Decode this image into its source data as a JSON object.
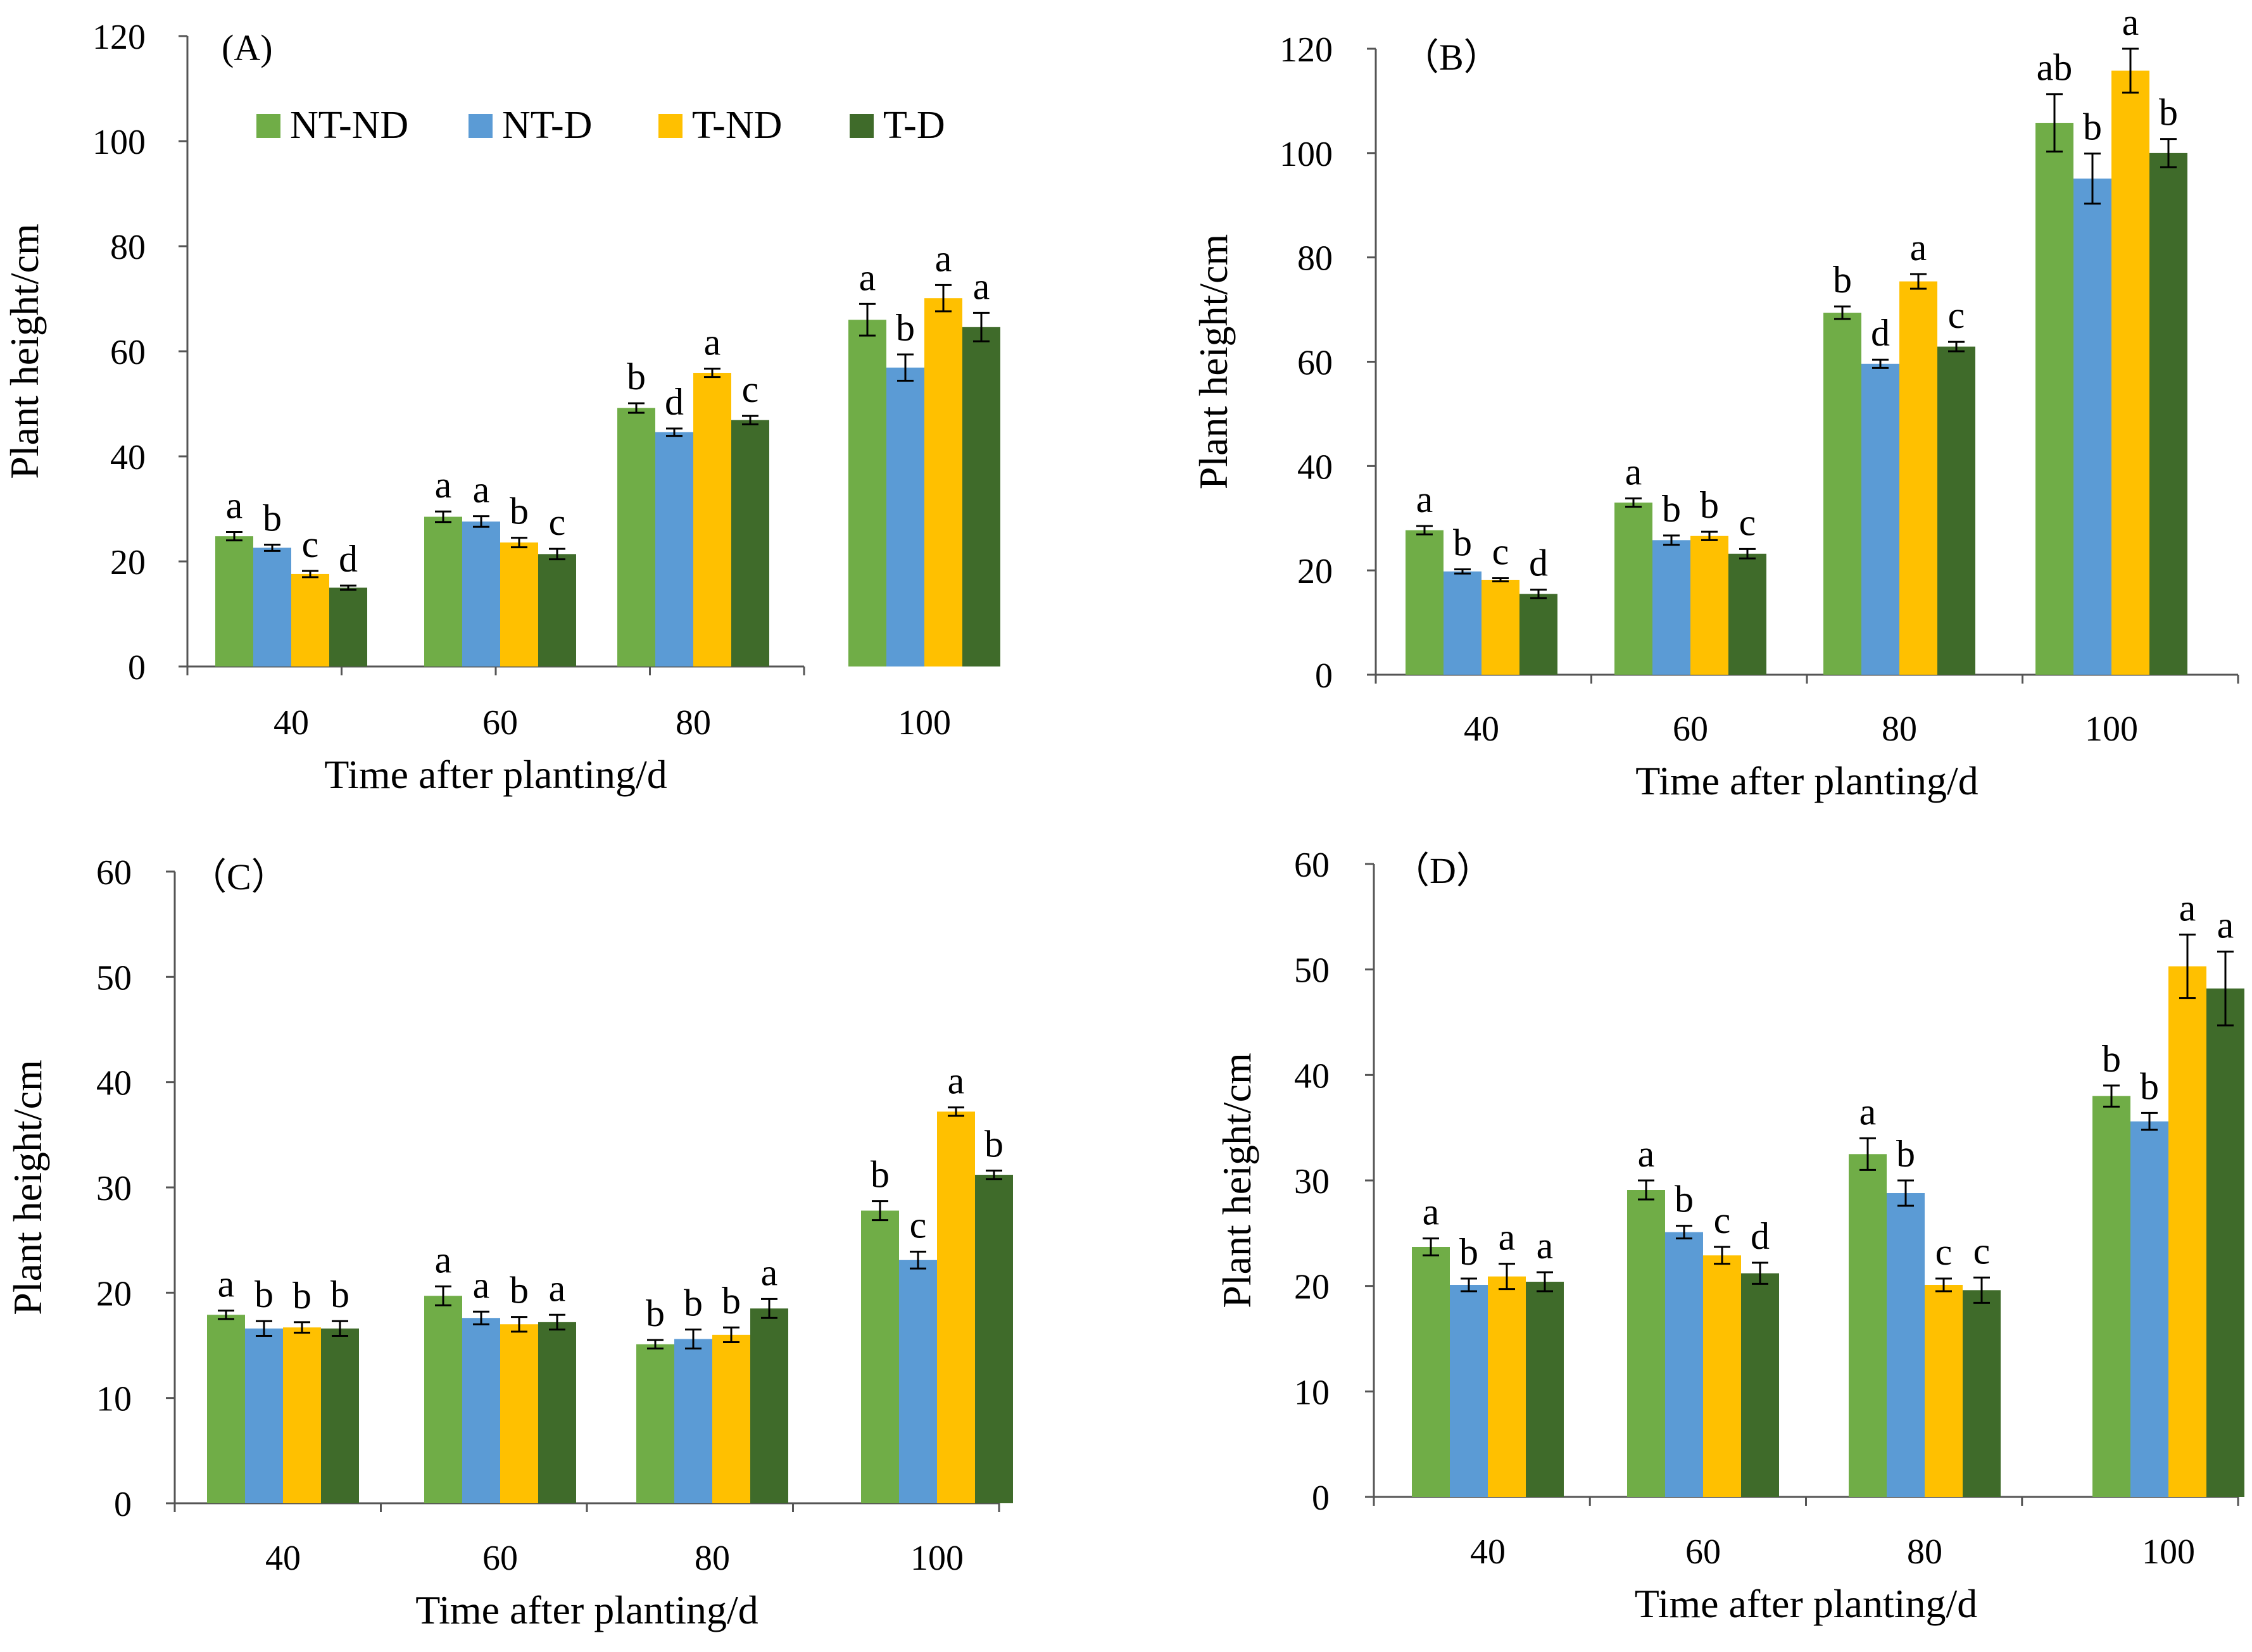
{
  "colors": {
    "NT-ND": "#70ad47",
    "NT-D": "#5b9bd5",
    "T-ND": "#ffc000",
    "T-D": "#3f6b2a",
    "axis": "#555555"
  },
  "chart_data": [
    {
      "type": "bar",
      "panel": "(A)",
      "xlabel": "Time after planting/d",
      "ylabel": "Plant height/cm",
      "ylim": [
        0,
        120
      ],
      "yticks": [
        0,
        20,
        40,
        60,
        80,
        100,
        120
      ],
      "categories": [
        "40",
        "60",
        "80",
        "100"
      ],
      "legend": [
        "NT-ND",
        "NT-D",
        "T-ND",
        "T-D"
      ],
      "series": [
        {
          "name": "NT-ND",
          "values": [
            24.8,
            28.5,
            49.2,
            66.0
          ],
          "errors": [
            0.8,
            1.0,
            0.9,
            3.0
          ],
          "letters": [
            "a",
            "a",
            "b",
            "a"
          ]
        },
        {
          "name": "NT-D",
          "values": [
            22.6,
            27.6,
            44.6,
            56.9
          ],
          "errors": [
            0.6,
            1.0,
            0.7,
            2.5
          ],
          "letters": [
            "b",
            "a",
            "d",
            "b"
          ]
        },
        {
          "name": "T-ND",
          "values": [
            17.6,
            23.6,
            55.9,
            70.1
          ],
          "errors": [
            0.6,
            0.9,
            0.8,
            2.5
          ],
          "letters": [
            "c",
            "b",
            "a",
            "a"
          ]
        },
        {
          "name": "T-D",
          "values": [
            15.0,
            21.4,
            46.9,
            64.6
          ],
          "errors": [
            0.4,
            1.0,
            0.8,
            2.7
          ],
          "letters": [
            "d",
            "c",
            "c",
            "a"
          ]
        }
      ]
    },
    {
      "type": "bar",
      "panel": "（B）",
      "xlabel": "Time after planting/d",
      "ylabel": "Plant height/cm",
      "ylim": [
        0,
        120
      ],
      "yticks": [
        0,
        20,
        40,
        60,
        80,
        100,
        120
      ],
      "categories": [
        "40",
        "60",
        "80",
        "100"
      ],
      "series": [
        {
          "name": "NT-ND",
          "values": [
            27.7,
            33.0,
            69.4,
            105.8
          ],
          "errors": [
            0.8,
            0.8,
            1.2,
            5.5
          ],
          "letters": [
            "a",
            "a",
            "b",
            "ab"
          ]
        },
        {
          "name": "NT-D",
          "values": [
            19.8,
            25.8,
            59.6,
            95.1
          ],
          "errors": [
            0.4,
            0.9,
            0.8,
            4.8
          ],
          "letters": [
            "b",
            "b",
            "d",
            "b"
          ]
        },
        {
          "name": "T-ND",
          "values": [
            18.2,
            26.6,
            75.4,
            115.8
          ],
          "errors": [
            0.3,
            0.8,
            1.4,
            4.2
          ],
          "letters": [
            "c",
            "b",
            "a",
            "a"
          ]
        },
        {
          "name": "T-D",
          "values": [
            15.5,
            23.2,
            62.9,
            100.0
          ],
          "errors": [
            0.8,
            0.9,
            0.9,
            2.7
          ],
          "letters": [
            "d",
            "c",
            "c",
            "b"
          ]
        }
      ]
    },
    {
      "type": "bar",
      "panel": "（C）",
      "xlabel": "Time after planting/d",
      "ylabel": "Plant height/cm",
      "ylim": [
        0,
        60
      ],
      "yticks": [
        0,
        10,
        20,
        30,
        40,
        50,
        60
      ],
      "categories": [
        "40",
        "60",
        "80",
        "100"
      ],
      "series": [
        {
          "name": "NT-ND",
          "values": [
            17.9,
            19.7,
            15.1,
            27.8
          ],
          "errors": [
            0.4,
            0.9,
            0.4,
            0.9
          ],
          "letters": [
            "a",
            "a",
            "b",
            "b"
          ]
        },
        {
          "name": "NT-D",
          "values": [
            16.6,
            17.6,
            15.6,
            23.1
          ],
          "errors": [
            0.7,
            0.6,
            0.9,
            0.8
          ],
          "letters": [
            "b",
            "a",
            "b",
            "c"
          ]
        },
        {
          "name": "T-ND",
          "values": [
            16.7,
            17.0,
            16.0,
            37.2
          ],
          "errors": [
            0.5,
            0.7,
            0.7,
            0.4
          ],
          "letters": [
            "b",
            "b",
            "b",
            "a"
          ]
        },
        {
          "name": "T-D",
          "values": [
            16.6,
            17.2,
            18.5,
            31.2
          ],
          "errors": [
            0.7,
            0.7,
            0.9,
            0.4
          ],
          "letters": [
            "b",
            "a",
            "a",
            "b"
          ]
        }
      ]
    },
    {
      "type": "bar",
      "panel": "（D）",
      "xlabel": "Time after planting/d",
      "ylabel": "Plant height/cm",
      "ylim": [
        0,
        60
      ],
      "yticks": [
        0,
        10,
        20,
        30,
        40,
        50,
        60
      ],
      "categories": [
        "40",
        "60",
        "80",
        "100"
      ],
      "series": [
        {
          "name": "NT-ND",
          "values": [
            23.7,
            29.1,
            32.5,
            38.0
          ],
          "errors": [
            0.8,
            0.9,
            1.5,
            1.0
          ],
          "letters": [
            "a",
            "a",
            "a",
            "b"
          ]
        },
        {
          "name": "NT-D",
          "values": [
            20.1,
            25.1,
            28.8,
            35.6
          ],
          "errors": [
            0.6,
            0.6,
            1.2,
            0.8
          ],
          "letters": [
            "b",
            "b",
            "b",
            "b"
          ]
        },
        {
          "name": "T-ND",
          "values": [
            20.9,
            22.9,
            20.1,
            50.3
          ],
          "errors": [
            1.2,
            0.8,
            0.6,
            3.0
          ],
          "letters": [
            "a",
            "c",
            "c",
            "a"
          ]
        },
        {
          "name": "T-D",
          "values": [
            20.4,
            21.2,
            19.6,
            48.2
          ],
          "errors": [
            0.9,
            1.0,
            1.2,
            3.5
          ],
          "letters": [
            "a",
            "d",
            "c",
            "a"
          ]
        }
      ]
    }
  ]
}
